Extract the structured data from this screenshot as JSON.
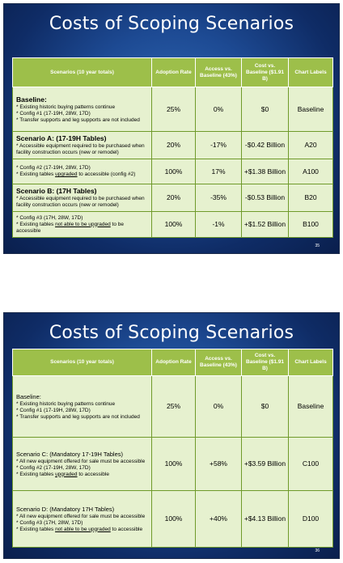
{
  "slides": [
    {
      "title": "Costs of Scoping Scenarios",
      "headers": [
        "Scenarios (10 year totals)",
        "Adoption Rate",
        "Access vs. Baseline (43%)",
        "Cost vs. Baseline ($1.91 B)",
        "Chart Labels"
      ],
      "rows": {
        "baseline": {
          "title": "Baseline:",
          "bullets": [
            "* Existing historic buying patterns continue",
            "* Config #1 (17-19H, 28W, 17D)",
            "* Transfer supports and leg supports are not included"
          ],
          "adoption": "25%",
          "access": "0%",
          "cost": "$0",
          "label": "Baseline"
        },
        "a20": {
          "title": "Scenario A: (17-19H Tables)",
          "bullet1": "* Accessible equipment required to be purchased when facility construction occurs (new or remodel)",
          "adoption": "20%",
          "access": "-17%",
          "cost": "-$0.42 Billion",
          "label": "A20"
        },
        "a100": {
          "bullet1": "* Config #2 (17-19H, 28W, 17D)",
          "b2_pre": "* Existing tables ",
          "b2_u": "upgraded",
          "b2_post": " to accessible (config #2)",
          "adoption": "100%",
          "access": "17%",
          "cost": "+$1.38 Billion",
          "label": "A100"
        },
        "b20": {
          "title": "Scenario B: (17H Tables)",
          "bullet1": "* Accessible equipment required to be purchased when facility construction occurs (new or remodel)",
          "adoption": "20%",
          "access": "-35%",
          "cost": "-$0.53 Billion",
          "label": "B20"
        },
        "b100": {
          "bullet1": "* Config #3 (17H, 28W, 17D)",
          "b2_pre": "* Existing tables ",
          "b2_u": "not able to be upgraded",
          "b2_post": " to be accessible",
          "adoption": "100%",
          "access": "-1%",
          "cost": "+$1.52 Billion",
          "label": "B100"
        }
      },
      "page_number": "35"
    },
    {
      "title": "Costs of Scoping Scenarios",
      "headers": [
        "Scenarios (10 year totals)",
        "Adoption Rate",
        "Access vs. Baseline (43%)",
        "Cost vs. Baseline ($1.91 B)",
        "Chart Labels"
      ],
      "rows": {
        "baseline": {
          "title": "Baseline:",
          "bullets": [
            "* Existing historic buying patterns continue",
            "* Config #1 (17-19H, 28W, 17D)",
            "* Transfer supports and leg supports are not included"
          ],
          "adoption": "25%",
          "access": "0%",
          "cost": "$0",
          "label": "Baseline"
        },
        "c100": {
          "title": "Scenario C: (Mandatory 17-19H Tables)",
          "bullet1": "* All new equipment offered for sale must be accessible",
          "bullet2": "* Config #2 (17-19H, 28W, 17D)",
          "b3_pre": "* Existing tables ",
          "b3_u": "upgraded",
          "b3_post": " to accessible",
          "adoption": "100%",
          "access": "+58%",
          "cost": "+$3.59 Billion",
          "label": "C100"
        },
        "d100": {
          "title": "Scenario D: (Mandatory 17H Tables)",
          "bullet1": "* All new equipment offered for sale must be accessible",
          "bullet2": "* Config #3 (17H, 28W, 17D)",
          "b3_pre": "* Existing tables ",
          "b3_u": "not able to be upgraded",
          "b3_post": " to accessible",
          "adoption": "100%",
          "access": "+40%",
          "cost": "+$4.13 Billion",
          "label": "D100"
        }
      },
      "page_number": "36"
    }
  ]
}
